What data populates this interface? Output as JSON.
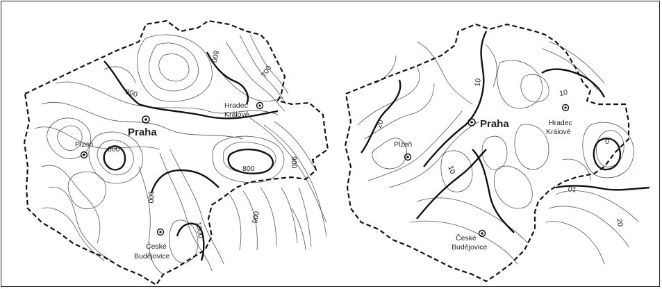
{
  "maps": [
    {
      "cities": {
        "praha": "Praha",
        "plzen": "Plzeň",
        "hradec_line1": "Hradec",
        "hradec_line2": "Králové",
        "budejovice_line1": "České",
        "budejovice_line2": "Budějovice"
      },
      "isoline_labels": [
        "800",
        "800",
        "800",
        "800",
        "900",
        "900",
        "900",
        "1000",
        "700"
      ]
    },
    {
      "cities": {
        "praha": "Praha",
        "plzen": "Plzeň",
        "hradec_line1": "Hradec",
        "hradec_line2": "Králové",
        "budejovice_line1": "České",
        "budejovice_line2": "Budějovice"
      },
      "isoline_labels": [
        "10",
        "10",
        "10",
        "10",
        "20",
        "20",
        "0"
      ]
    }
  ]
}
